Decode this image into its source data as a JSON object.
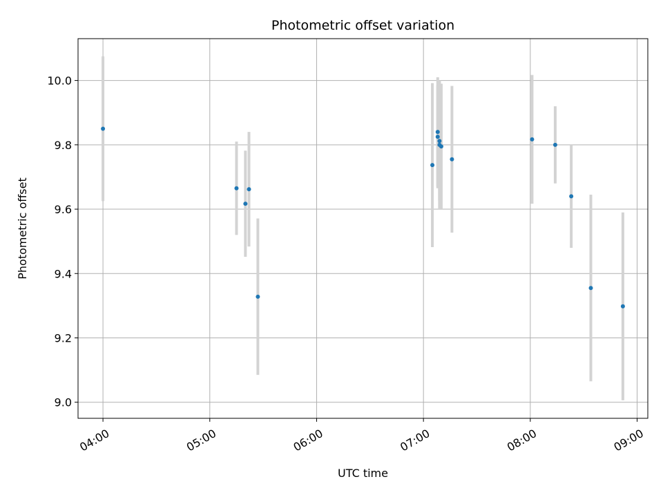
{
  "chart_data": {
    "type": "scatter",
    "title": "Photometric offset variation",
    "xlabel": "UTC time",
    "ylabel": "Photometric offset",
    "x_unit": "hours UTC",
    "xlim": [
      "03:46",
      "09:06"
    ],
    "ylim": [
      8.95,
      10.13
    ],
    "x_ticks": [
      {
        "time": "04:00",
        "label": "04:00"
      },
      {
        "time": "05:00",
        "label": "05:00"
      },
      {
        "time": "06:00",
        "label": "06:00"
      },
      {
        "time": "07:00",
        "label": "07:00"
      },
      {
        "time": "08:00",
        "label": "08:00"
      },
      {
        "time": "09:00",
        "label": "09:00"
      }
    ],
    "y_ticks": [
      9.0,
      9.2,
      9.4,
      9.6,
      9.8,
      10.0
    ],
    "y_tick_labels": [
      "9.0",
      "9.2",
      "9.4",
      "9.6",
      "9.8",
      "10.0"
    ],
    "grid": true,
    "point_color": "#1f77b4",
    "errorbar_color": "#d3d3d3",
    "points": [
      {
        "time": "04:00",
        "y": 9.85,
        "err": 0.225
      },
      {
        "time": "05:15",
        "y": 9.665,
        "err": 0.145
      },
      {
        "time": "05:20",
        "y": 9.617,
        "err": 0.165
      },
      {
        "time": "05:22",
        "y": 9.662,
        "err": 0.178
      },
      {
        "time": "05:27",
        "y": 9.328,
        "err": 0.243
      },
      {
        "time": "07:05",
        "y": 9.737,
        "err": 0.255
      },
      {
        "time": "07:08",
        "y": 9.84,
        "err": 0.17
      },
      {
        "time": "07:08",
        "y": 9.825,
        "err": 0.16
      },
      {
        "time": "07:09",
        "y": 9.812,
        "err": 0.185
      },
      {
        "time": "07:09",
        "y": 9.8,
        "err": 0.2
      },
      {
        "time": "07:10",
        "y": 9.795,
        "err": 0.195
      },
      {
        "time": "07:16",
        "y": 9.755,
        "err": 0.228
      },
      {
        "time": "08:01",
        "y": 9.817,
        "err": 0.2
      },
      {
        "time": "08:14",
        "y": 9.8,
        "err": 0.12
      },
      {
        "time": "08:23",
        "y": 9.64,
        "err": 0.16
      },
      {
        "time": "08:34",
        "y": 9.355,
        "err": 0.29
      },
      {
        "time": "08:52",
        "y": 9.298,
        "err": 0.292
      }
    ]
  }
}
